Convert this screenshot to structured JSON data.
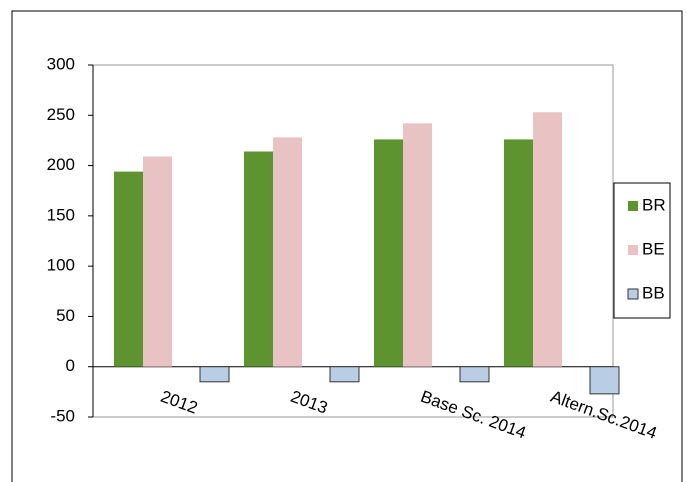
{
  "chart_data": {
    "type": "bar",
    "categories": [
      "2012",
      "2013",
      "Base Sc. 2014",
      "Altern.Sc.2014"
    ],
    "series": [
      {
        "name": "BR",
        "color": "#5e9430",
        "values": [
          194,
          214,
          226,
          226
        ]
      },
      {
        "name": "BE",
        "color": "#e9c3c3",
        "values": [
          209,
          228,
          242,
          253
        ]
      },
      {
        "name": "BB",
        "color": "#b9cde5",
        "values": [
          -15,
          -15,
          -15,
          -27
        ]
      }
    ],
    "ylim": [
      -50,
      300
    ],
    "yticks": [
      -50,
      0,
      50,
      100,
      150,
      200,
      250,
      300
    ],
    "legend": "right"
  }
}
